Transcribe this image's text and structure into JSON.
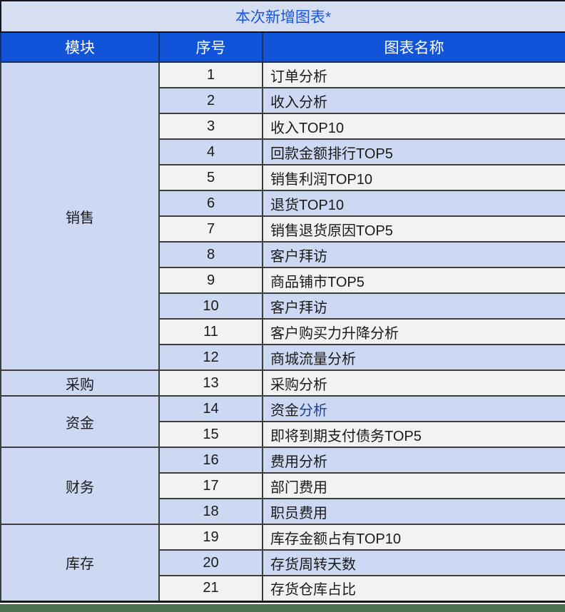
{
  "title": "本次新增图表*",
  "columns": {
    "module": "模块",
    "no": "序号",
    "name": "图表名称"
  },
  "modules": [
    {
      "label": "销售",
      "rowspan": 12
    },
    {
      "label": "采购",
      "rowspan": 1
    },
    {
      "label": "资金",
      "rowspan": 2
    },
    {
      "label": "财务",
      "rowspan": 3
    },
    {
      "label": "库存",
      "rowspan": 3
    }
  ],
  "rows": [
    {
      "no": "1",
      "name": "订单分析"
    },
    {
      "no": "2",
      "name": "收入分析"
    },
    {
      "no": "3",
      "name": "收入TOP10"
    },
    {
      "no": "4",
      "name": "回款金额排行TOP5"
    },
    {
      "no": "5",
      "name": "销售利润TOP10"
    },
    {
      "no": "6",
      "name": "退货TOP10"
    },
    {
      "no": "7",
      "name": "销售退货原因TOP5"
    },
    {
      "no": "8",
      "name": "客户拜访"
    },
    {
      "no": "9",
      "name": "商品铺市TOP5"
    },
    {
      "no": "10",
      "name": "客户拜访"
    },
    {
      "no": "11",
      "name": "客户购买力升降分析"
    },
    {
      "no": "12",
      "name": "商城流量分析"
    },
    {
      "no": "13",
      "name": "采购分析"
    },
    {
      "no": "14",
      "name": "资金分析",
      "name_part1": "资金",
      "name_part2": "分析"
    },
    {
      "no": "15",
      "name": "即将到期支付债务TOP5"
    },
    {
      "no": "16",
      "name": "费用分析"
    },
    {
      "no": "17",
      "name": "部门费用"
    },
    {
      "no": "18",
      "name": "职员费用"
    },
    {
      "no": "19",
      "name": "库存金额占有TOP10"
    },
    {
      "no": "20",
      "name": "存货周转天数"
    },
    {
      "no": "21",
      "name": "存货仓库占比"
    }
  ],
  "colors": {
    "title_bg": "#d6def2",
    "title_text": "#1b57d8",
    "header_bg": "#1254d9",
    "header_text": "#ffffff",
    "row_light": "#f2f2f2",
    "row_blue": "#cdd8f3",
    "link_blue": "#21408f",
    "border_dark": "#161616",
    "bottom_strip_green": "#4a704d"
  }
}
